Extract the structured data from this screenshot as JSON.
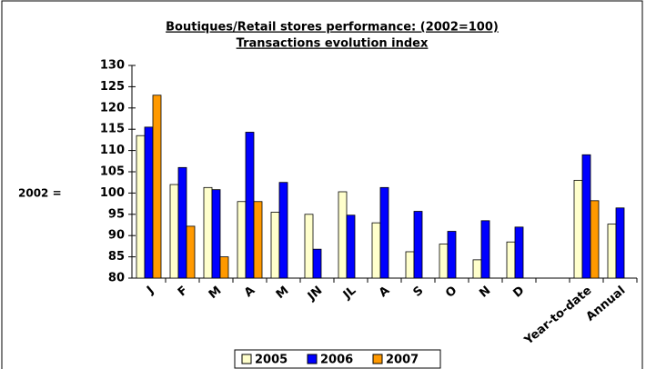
{
  "chart_data": {
    "type": "bar",
    "title": "Boutiques/Retail stores performance: (2002=100)",
    "subtitle": "Transactions evolution index",
    "ylabel": "2002 =",
    "categories": [
      "J",
      "F",
      "M",
      "A",
      "M",
      "JN",
      "JL",
      "A",
      "S",
      "O",
      "N",
      "D",
      null,
      "Year-to-date",
      "Annual"
    ],
    "series": [
      {
        "name": "2005",
        "color": "#ffffcc",
        "values": [
          113.5,
          102,
          101.3,
          98,
          95.5,
          95,
          100.3,
          93,
          86.2,
          88,
          84.3,
          88.5,
          null,
          103,
          92.7
        ]
      },
      {
        "name": "2006",
        "color": "#0000ff",
        "values": [
          115.5,
          106,
          100.8,
          114.3,
          102.5,
          86.8,
          94.8,
          101.3,
          95.7,
          91,
          93.5,
          92,
          null,
          109,
          96.5
        ]
      },
      {
        "name": "2007",
        "color": "#ff9900",
        "values": [
          123,
          92.2,
          85,
          98,
          null,
          null,
          null,
          null,
          null,
          null,
          null,
          null,
          null,
          98.2,
          null
        ]
      }
    ],
    "ylim": [
      80,
      130
    ],
    "yticks": [
      80,
      85,
      90,
      95,
      100,
      105,
      110,
      115,
      120,
      125,
      130
    ],
    "legend": "bottom"
  }
}
